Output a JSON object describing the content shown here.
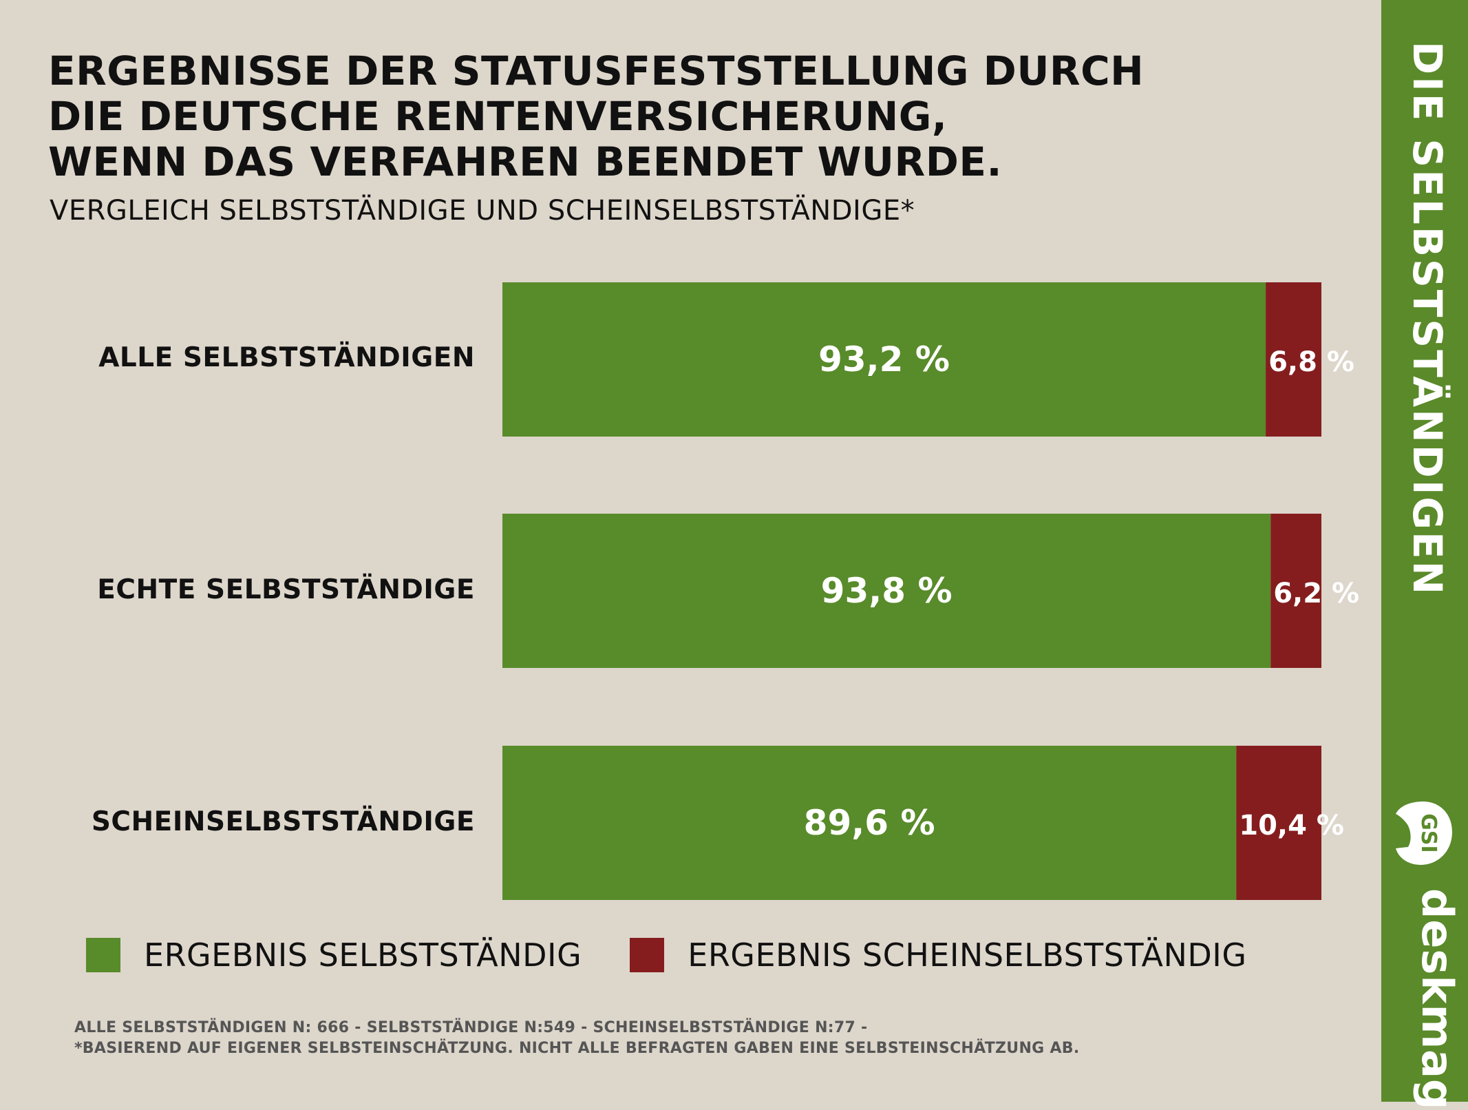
{
  "header": {
    "title": "ERGEBNISSE DER STATUSFESTSTELLUNG DURCH\nDIE DEUTSCHE RENTENVERSICHERUNG,\nWENN DAS VERFAHREN BEENDET WURDE.",
    "subtitle": "VERGLEICH SELBSTSTÄNDIGE UND SCHEINSELBSTSTÄNDIGE*"
  },
  "sidebar": {
    "title": "DIE SELBSTSTÄNDIGEN",
    "logo_text": "deskmag",
    "logo_badge": "GSI"
  },
  "colors": {
    "selbststaendig": "#588b2a",
    "scheinselbststaendig": "#851d1e",
    "sidebar": "#5a8a2a",
    "background": "#ddd6cb"
  },
  "chart_data": {
    "type": "bar",
    "orientation": "horizontal",
    "stacked": true,
    "categories": [
      "ALLE SELBSTSTÄNDIGEN",
      "ECHTE SELBSTSTÄNDIGE",
      "SCHEINSELBSTSTÄNDIGE"
    ],
    "series": [
      {
        "name": "ERGEBNIS SELBSTSTÄNDIG",
        "values": [
          93.2,
          93.8,
          89.6
        ],
        "labels": [
          "93,2 %",
          "93,8 %",
          "89,6 %"
        ]
      },
      {
        "name": "ERGEBNIS SCHEINSELBSTSTÄNDIG",
        "values": [
          6.8,
          6.2,
          10.4
        ],
        "labels": [
          "6,8 %",
          "6,2 %",
          "10,4 %"
        ]
      }
    ],
    "xlim": [
      0,
      100
    ],
    "grid": false,
    "legend": "bottom"
  },
  "footnote": {
    "line1": "ALLE SELBSTSTÄNDIGEN N: 666 - SELBSTSTÄNDIGE N:549 - SCHEINSELBSTSTÄNDIGE N:77 -",
    "line2": "*BASIEREND AUF EIGENER SELBSTEINSCHÄTZUNG. NICHT ALLE BEFRAGTEN GABEN EINE SELBSTEINSCHÄTZUNG AB."
  }
}
